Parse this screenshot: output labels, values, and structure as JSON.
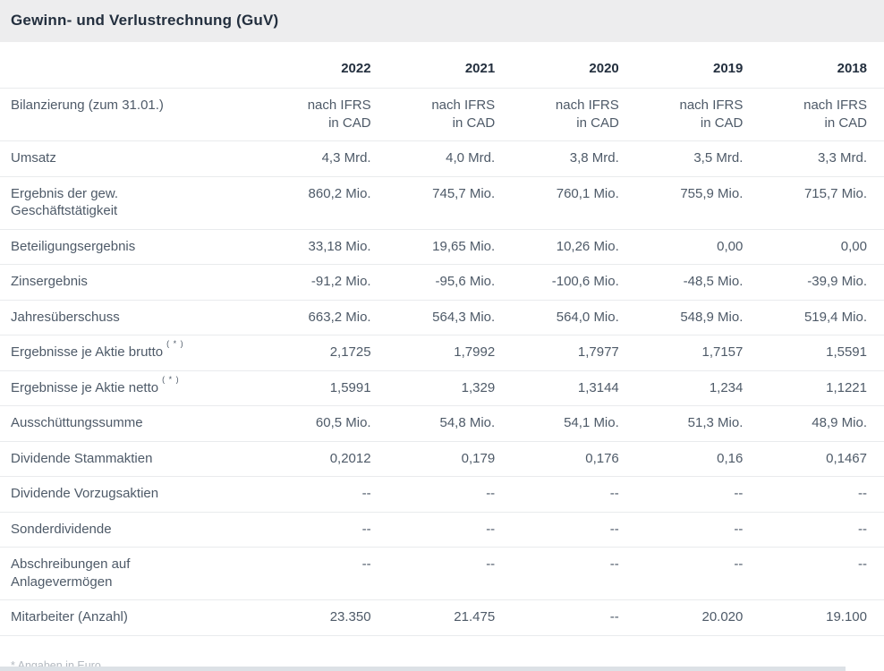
{
  "title": "Gewinn- und Verlustrechnung (GuV)",
  "footnote": "* Angaben in Euro",
  "colors": {
    "header_bg": "#ededee",
    "heading_text": "#232f3e",
    "body_text": "#4e5a68",
    "row_border": "#e9ebed",
    "footnote_text": "#b3b9c0",
    "next_section_bar": "#dce1e6"
  },
  "chart_data": {
    "type": "table",
    "title": "Gewinn- und Verlustrechnung (GuV)",
    "columns": [
      "2022",
      "2021",
      "2020",
      "2019",
      "2018"
    ],
    "rows": [
      {
        "label": "Bilanzierung (zum 31.01.)",
        "values": [
          "nach IFRS\nin CAD",
          "nach IFRS\nin CAD",
          "nach IFRS\nin CAD",
          "nach IFRS\nin CAD",
          "nach IFRS\nin CAD"
        ]
      },
      {
        "label": "Umsatz",
        "values": [
          "4,3 Mrd.",
          "4,0 Mrd.",
          "3,8 Mrd.",
          "3,5 Mrd.",
          "3,3 Mrd."
        ]
      },
      {
        "label": "Ergebnis der gew.\nGeschäftstätigkeit",
        "values": [
          "860,2 Mio.",
          "745,7 Mio.",
          "760,1 Mio.",
          "755,9 Mio.",
          "715,7 Mio."
        ]
      },
      {
        "label": "Beteiligungsergebnis",
        "values": [
          "33,18 Mio.",
          "19,65 Mio.",
          "10,26 Mio.",
          "0,00",
          "0,00"
        ]
      },
      {
        "label": "Zinsergebnis",
        "values": [
          "-91,2 Mio.",
          "-95,6 Mio.",
          "-100,6 Mio.",
          "-48,5 Mio.",
          "-39,9 Mio."
        ]
      },
      {
        "label": "Jahresüberschuss",
        "values": [
          "663,2 Mio.",
          "564,3 Mio.",
          "564,0 Mio.",
          "548,9 Mio.",
          "519,4 Mio."
        ]
      },
      {
        "label": "Ergebnisse je Aktie brutto",
        "label_suffix": "( * )",
        "values": [
          "2,1725",
          "1,7992",
          "1,7977",
          "1,7157",
          "1,5591"
        ]
      },
      {
        "label": "Ergebnisse je Aktie netto",
        "label_suffix": "( * )",
        "values": [
          "1,5991",
          "1,329",
          "1,3144",
          "1,234",
          "1,1221"
        ]
      },
      {
        "label": "Ausschüttungssumme",
        "values": [
          "60,5 Mio.",
          "54,8 Mio.",
          "54,1 Mio.",
          "51,3 Mio.",
          "48,9 Mio."
        ]
      },
      {
        "label": "Dividende Stammaktien",
        "values": [
          "0,2012",
          "0,179",
          "0,176",
          "0,16",
          "0,1467"
        ]
      },
      {
        "label": "Dividende Vorzugsaktien",
        "values": [
          "--",
          "--",
          "--",
          "--",
          "--"
        ]
      },
      {
        "label": "Sonderdividende",
        "values": [
          "--",
          "--",
          "--",
          "--",
          "--"
        ]
      },
      {
        "label": "Abschreibungen auf\nAnlagevermögen",
        "values": [
          "--",
          "--",
          "--",
          "--",
          "--"
        ]
      },
      {
        "label": "Mitarbeiter (Anzahl)",
        "values": [
          "23.350",
          "21.475",
          "--",
          "20.020",
          "19.100"
        ]
      }
    ]
  }
}
